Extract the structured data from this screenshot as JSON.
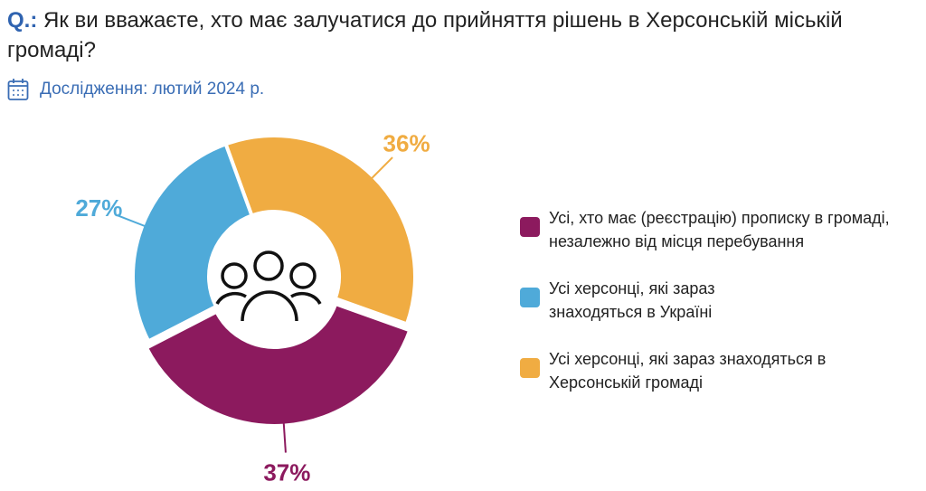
{
  "header": {
    "q_prefix": "Q.:",
    "question": "Як ви вважаєте, хто має залучатися до прийняття рішень в Херсонській міській громаді?",
    "study": "Дослідження: лютий 2024 р."
  },
  "chart_data": {
    "type": "pie",
    "donut": true,
    "title": "Як ви вважаєте, хто має залучатися до прийняття рішень в Херсонській міській громаді?",
    "legend_position": "right",
    "slices": [
      {
        "name": "Усі херсонці, які зараз знаходяться в Херсонській громаді",
        "value": 36,
        "label": "36%",
        "color": "#f0ac42"
      },
      {
        "name": "Усі, хто має (реєстрацію) прописку в громаді, незалежно від місця перебування",
        "value": 37,
        "label": "37%",
        "color": "#8c1a5e"
      },
      {
        "name": "Усі херсонці, які зараз знаходяться в Україні",
        "value": 27,
        "label": "27%",
        "color": "#4faad9"
      }
    ]
  },
  "legend": [
    {
      "text": "Усі, хто має (реєстрацію) прописку в громаді, незалежно від місця перебування",
      "color": "#8c1a5e"
    },
    {
      "text": "Усі херсонці, які зараз знаходяться в Україні",
      "color": "#4faad9"
    },
    {
      "text": "Усі херсонці, які зараз знаходяться в Херсонській громаді",
      "color": "#f0ac42"
    }
  ]
}
